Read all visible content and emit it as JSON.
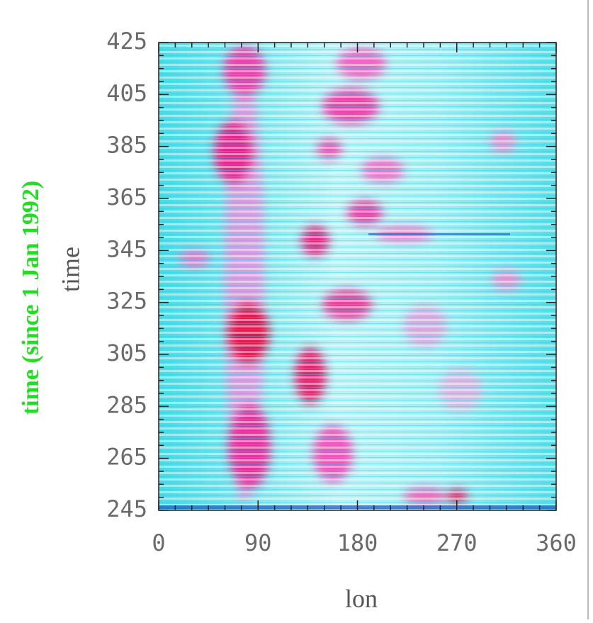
{
  "chart_data": {
    "type": "heatmap",
    "xlabel": "lon",
    "ylabel": "time",
    "ylabel_overlay": "time (since 1 Jan 1992)",
    "xlim": [
      0,
      360
    ],
    "xticks": [
      0,
      90,
      180,
      270,
      360
    ],
    "ylim": [
      245,
      425
    ],
    "yticks": [
      245,
      265,
      285,
      305,
      325,
      345,
      365,
      385,
      405,
      425
    ]
  }
}
